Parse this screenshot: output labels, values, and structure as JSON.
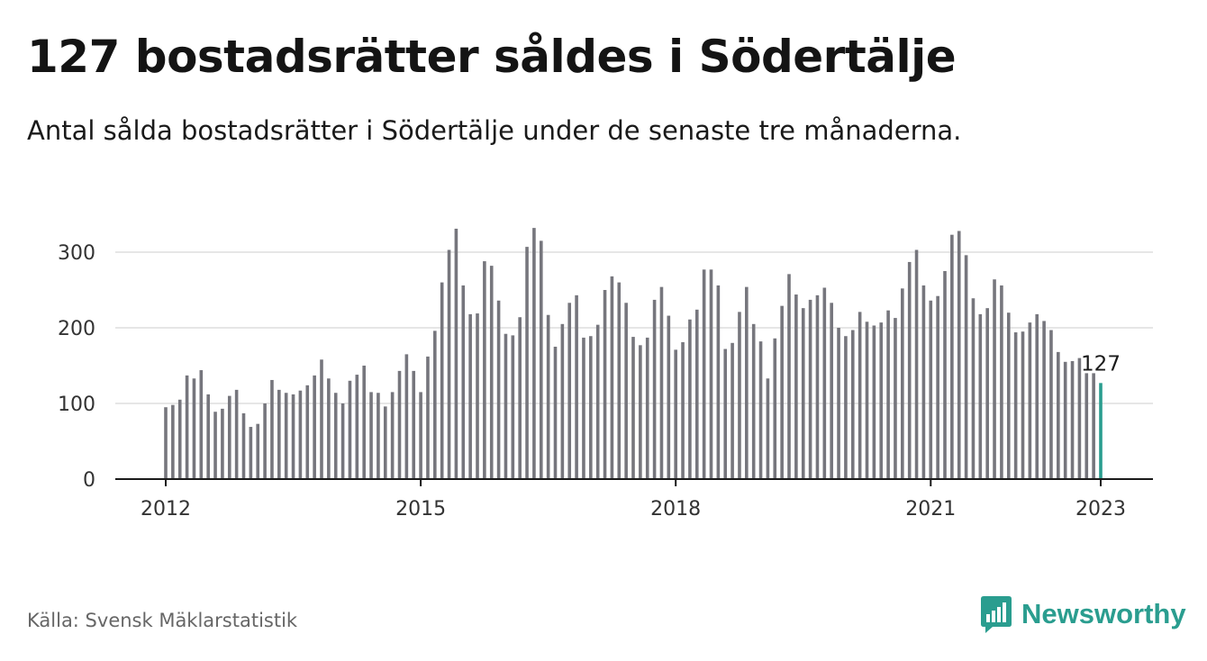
{
  "title": "127 bostadsrätter såldes i Södertälje",
  "subtitle": "Antal sålda bostadsrätter i Södertälje under de senaste tre månaderna.",
  "source": "Källa: Svensk Mäklarstatistik",
  "brand": {
    "name": "Newsworthy"
  },
  "colors": {
    "bar": "#76767d",
    "highlight": "#2a9d8f",
    "grid": "#dddddd",
    "axis": "#1a1a1a"
  },
  "chart_data": {
    "type": "bar",
    "title": "127 bostadsrätter såldes i Södertälje",
    "subtitle": "Antal sålda bostadsrätter i Södertälje under de senaste tre månaderna.",
    "xlabel": "",
    "ylabel": "",
    "ylim": [
      0,
      330
    ],
    "yticks": [
      0,
      100,
      200,
      300
    ],
    "x_tick_labels": [
      "2012",
      "2015",
      "2018",
      "2021",
      "2023"
    ],
    "x_start": "2012-01",
    "x_end": "2023-01",
    "grid": true,
    "values": [
      95,
      98,
      105,
      137,
      133,
      144,
      112,
      89,
      93,
      110,
      118,
      87,
      69,
      73,
      100,
      131,
      118,
      114,
      112,
      117,
      124,
      137,
      158,
      133,
      114,
      100,
      130,
      138,
      150,
      115,
      114,
      96,
      115,
      143,
      165,
      143,
      115,
      162,
      196,
      260,
      303,
      331,
      256,
      218,
      219,
      288,
      282,
      236,
      192,
      190,
      214,
      307,
      332,
      315,
      217,
      175,
      205,
      233,
      243,
      187,
      189,
      204,
      250,
      268,
      260,
      233,
      188,
      177,
      187,
      237,
      254,
      216,
      171,
      181,
      211,
      224,
      277,
      277,
      256,
      172,
      180,
      221,
      254,
      205,
      182,
      133,
      186,
      229,
      271,
      244,
      226,
      237,
      243,
      253,
      233,
      200,
      189,
      197,
      221,
      208,
      203,
      207,
      223,
      213,
      252,
      287,
      303,
      256,
      236,
      242,
      275,
      323,
      328,
      296,
      239,
      218,
      226,
      264,
      256,
      220,
      194,
      195,
      207,
      218,
      209,
      197,
      168,
      155,
      156,
      160,
      140,
      140,
      127
    ],
    "highlight": {
      "value": 127,
      "label": "127",
      "date": "2023-01"
    }
  }
}
